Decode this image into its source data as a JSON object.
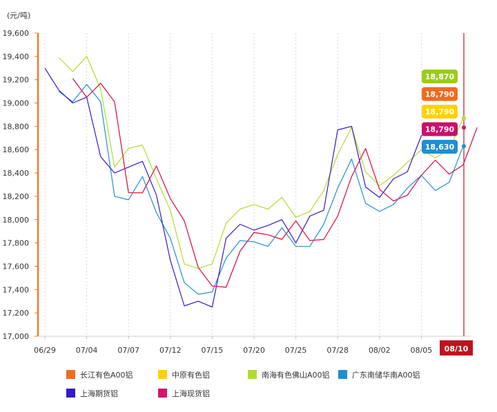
{
  "chart_data": {
    "type": "line",
    "unit_label": "(元/吨)",
    "y_ticks": [
      "19,600",
      "19,400",
      "19,200",
      "19,000",
      "18,800",
      "18,600",
      "18,400",
      "18,200",
      "18,000",
      "17,800",
      "17,600",
      "17,400",
      "17,200",
      "17,000"
    ],
    "y_tick_values": [
      19600,
      19400,
      19200,
      19000,
      18800,
      18600,
      18400,
      18200,
      18000,
      17800,
      17600,
      17400,
      17200,
      17000
    ],
    "ylim": [
      17000,
      19600
    ],
    "x_ticks": [
      "06/29",
      "07/04",
      "07/07",
      "07/12",
      "07/15",
      "07/20",
      "07/25",
      "07/28",
      "08/02",
      "08/05",
      "08/10"
    ],
    "x_tick_index": [
      0,
      3,
      6,
      9,
      12,
      15,
      18,
      21,
      24,
      27,
      30
    ],
    "highlight_label": "08/10",
    "n_points": 31,
    "series": [
      {
        "name": "长江有色A00铝",
        "color": "#f26b1d",
        "start": 2,
        "values": [
          19210,
          19050,
          19170,
          19010,
          18230,
          18230,
          18460,
          18180,
          17990,
          17590,
          17430,
          17420,
          17730,
          17890,
          17870,
          17830,
          17990,
          17820,
          17830,
          18030,
          18370,
          18610,
          18260,
          18160,
          18210,
          18380,
          18510,
          18390,
          18470,
          18790
        ],
        "end_label": "18,790"
      },
      {
        "name": "中原有色铝",
        "color": "#ffd200",
        "start": 2,
        "values": [
          19210,
          19050,
          19170,
          19010,
          18230,
          18230,
          18460,
          18180,
          17990,
          17590,
          17430,
          17420,
          17730,
          17890,
          17870,
          17830,
          17990,
          17820,
          17830,
          18030,
          18370,
          18610,
          18260,
          18160,
          18210,
          18380,
          18510,
          18390,
          18470,
          18790
        ],
        "end_label": "18,790"
      },
      {
        "name": "南海有色佛山A00铝",
        "color": "#b2dc2b",
        "start": 1,
        "values": [
          19390,
          19270,
          19400,
          19120,
          18450,
          18610,
          18640,
          18350,
          18080,
          17620,
          17580,
          17620,
          17970,
          18090,
          18130,
          18090,
          18190,
          18020,
          18070,
          18250,
          18560,
          18790,
          18410,
          18290,
          18380,
          18490,
          18600,
          18530,
          18600,
          18870
        ],
        "end_label": "18,870"
      },
      {
        "name": "广东南储华南A00铝",
        "color": "#1f8fd0",
        "start": 1,
        "values": [
          19100,
          19010,
          19160,
          19010,
          18200,
          18170,
          18370,
          18060,
          17840,
          17460,
          17360,
          17380,
          17670,
          17820,
          17810,
          17770,
          17930,
          17770,
          17770,
          17960,
          18270,
          18520,
          18140,
          18070,
          18130,
          18270,
          18380,
          18250,
          18320,
          18630
        ],
        "end_label": "18,630"
      },
      {
        "name": "上海期货铝",
        "color": "#3619c6",
        "start": 0,
        "values": [
          19300,
          19110,
          19000,
          19050,
          18540,
          18400,
          18450,
          18500,
          18210,
          17650,
          17260,
          17300,
          17250,
          17840,
          17960,
          17910,
          17950,
          18000,
          17800,
          18030,
          18080,
          18770,
          18800,
          18280,
          18190,
          18350,
          18410,
          18720,
          18760
        ],
        "end_label": ""
      },
      {
        "name": "上海现货铝",
        "color": "#d4146e",
        "start": 2,
        "values": [
          19210,
          19050,
          19170,
          19010,
          18230,
          18230,
          18460,
          18180,
          17990,
          17590,
          17430,
          17420,
          17730,
          17890,
          17870,
          17830,
          17990,
          17820,
          17830,
          18030,
          18370,
          18610,
          18260,
          18160,
          18210,
          18380,
          18510,
          18390,
          18470,
          18790
        ],
        "end_label": "18,790"
      }
    ],
    "badges": [
      {
        "text": "18,870",
        "color": "#9ccc19"
      },
      {
        "text": "18,790",
        "color": "#f26b1d"
      },
      {
        "text": "18,790",
        "color": "#ffd200"
      },
      {
        "text": "18,790",
        "color": "#c8106a"
      },
      {
        "text": "18,630",
        "color": "#1f8fd0"
      }
    ],
    "legend": [
      {
        "name": "长江有色A00铝",
        "color": "#f26b1d"
      },
      {
        "name": "中原有色铝",
        "color": "#ffd200"
      },
      {
        "name": "南海有色佛山A00铝",
        "color": "#b2dc2b"
      },
      {
        "name": "广东南储华南A00铝",
        "color": "#1f8fd0"
      },
      {
        "name": "上海期货铝",
        "color": "#3619c6"
      },
      {
        "name": "上海现货铝",
        "color": "#d4146e"
      }
    ],
    "grid": "vertical-dashed",
    "legend_position": "bottom",
    "axis_color": "#f26b1d",
    "highlight_color": "#c1121f"
  }
}
